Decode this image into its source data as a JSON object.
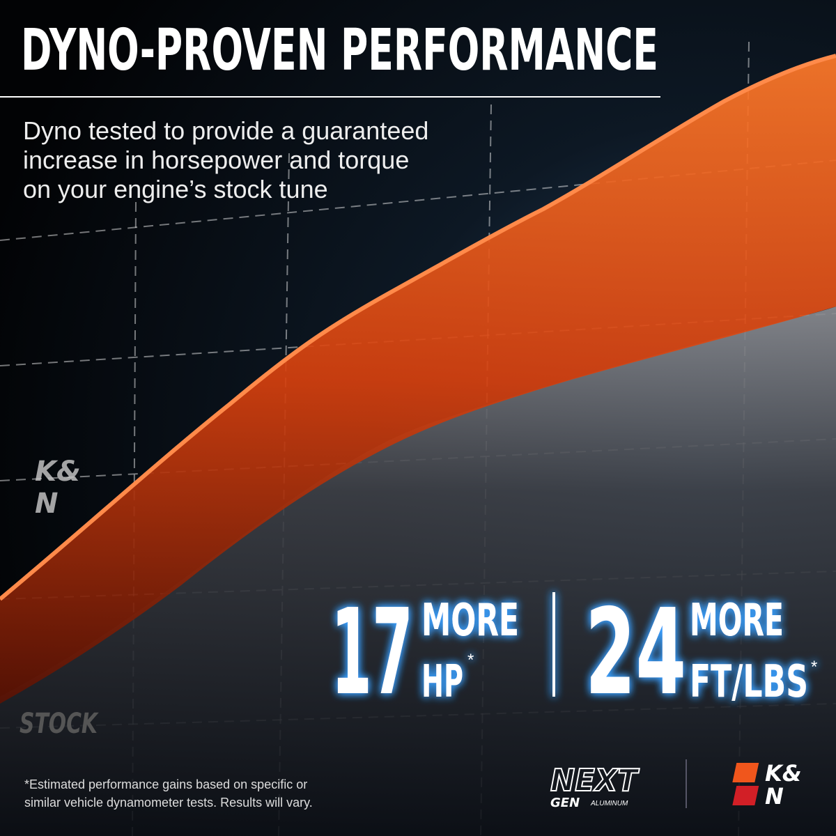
{
  "title": "DYNO-PROVEN PERFORMANCE",
  "description": [
    "Dyno tested to provide a guaranteed",
    "increase in horsepower and torque",
    "on your engine’s stock tune"
  ],
  "stock_label": "STOCK",
  "stats": [
    {
      "value": 17,
      "line1": "MORE",
      "line2": "HP",
      "mark": "*"
    },
    {
      "value": 24,
      "line1": "MORE",
      "line2": "FT/LBS",
      "mark": "*"
    }
  ],
  "footnote": [
    "*Estimated performance gains based on specific or",
    "similar vehicle dynamometer tests. Results will vary."
  ],
  "brand": {
    "top": "K&",
    "bottom": "N"
  },
  "nextgen": {
    "word": "NEXT",
    "sub": "GEN",
    "material": "ALUMINUM"
  }
}
